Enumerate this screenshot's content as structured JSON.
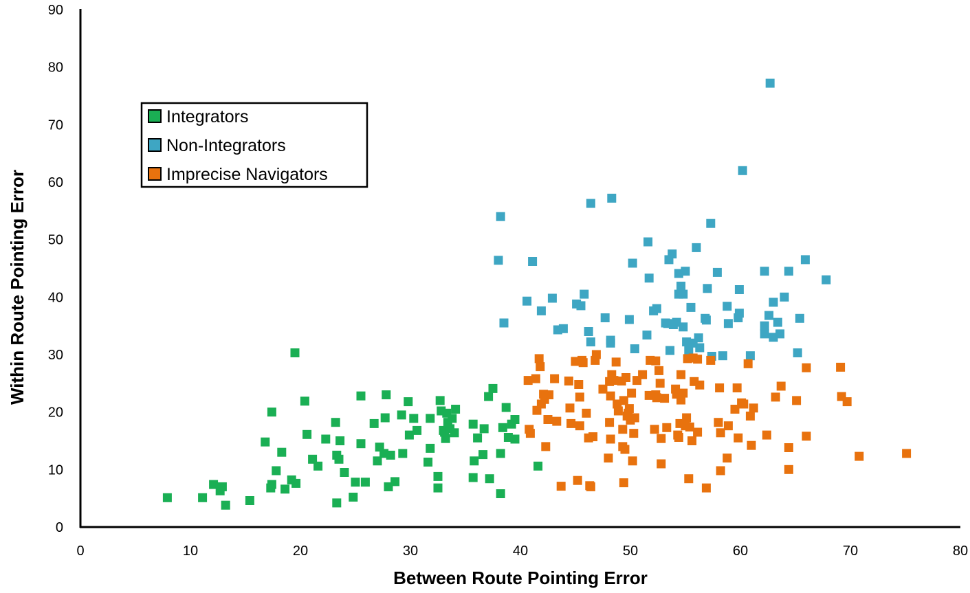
{
  "chart_data": {
    "type": "scatter",
    "xlabel": "Between Route Pointing Error",
    "ylabel": "Within Route Pointing Error",
    "xlim": [
      0,
      80
    ],
    "ylim": [
      0,
      90
    ],
    "xticks": [
      "0",
      "10",
      "20",
      "30",
      "40",
      "50",
      "60",
      "70",
      "80"
    ],
    "yticks": [
      "0",
      "10",
      "20",
      "30",
      "40",
      "50",
      "60",
      "70",
      "80",
      "90"
    ],
    "grid": false,
    "legend_position": "top-left",
    "series": [
      {
        "name": "Integrators",
        "color": "#1aaf54",
        "points": [
          [
            7.9,
            5.1
          ],
          [
            11.1,
            5.1
          ],
          [
            12.1,
            7.4
          ],
          [
            12.7,
            6.3
          ],
          [
            12.9,
            7.0
          ],
          [
            13.2,
            3.8
          ],
          [
            15.4,
            4.6
          ],
          [
            16.8,
            14.8
          ],
          [
            17.3,
            6.8
          ],
          [
            17.4,
            7.4
          ],
          [
            17.4,
            20.0
          ],
          [
            17.8,
            9.8
          ],
          [
            18.3,
            13.0
          ],
          [
            18.6,
            6.6
          ],
          [
            19.2,
            8.2
          ],
          [
            19.5,
            30.3
          ],
          [
            19.6,
            7.6
          ],
          [
            20.4,
            21.9
          ],
          [
            20.6,
            16.1
          ],
          [
            21.1,
            11.8
          ],
          [
            21.6,
            10.6
          ],
          [
            22.3,
            15.3
          ],
          [
            23.2,
            18.2
          ],
          [
            23.3,
            12.5
          ],
          [
            23.3,
            4.2
          ],
          [
            23.5,
            11.8
          ],
          [
            23.6,
            15.0
          ],
          [
            24.0,
            9.5
          ],
          [
            24.8,
            5.2
          ],
          [
            25.0,
            7.8
          ],
          [
            25.5,
            22.8
          ],
          [
            25.5,
            14.5
          ],
          [
            25.9,
            7.8
          ],
          [
            26.7,
            18.0
          ],
          [
            27.0,
            11.5
          ],
          [
            27.2,
            13.9
          ],
          [
            27.6,
            12.8
          ],
          [
            27.7,
            19.0
          ],
          [
            27.8,
            23.0
          ],
          [
            28.0,
            7.0
          ],
          [
            28.2,
            12.5
          ],
          [
            28.6,
            7.9
          ],
          [
            29.2,
            19.5
          ],
          [
            29.3,
            12.8
          ],
          [
            29.8,
            21.8
          ],
          [
            29.9,
            16.0
          ],
          [
            30.3,
            18.9
          ],
          [
            30.6,
            16.8
          ],
          [
            31.6,
            11.3
          ],
          [
            31.8,
            13.7
          ],
          [
            31.8,
            18.9
          ],
          [
            32.5,
            8.8
          ],
          [
            32.5,
            6.8
          ],
          [
            32.7,
            22.0
          ],
          [
            32.8,
            20.2
          ],
          [
            33.0,
            16.8
          ],
          [
            33.1,
            16.5
          ],
          [
            33.2,
            15.4
          ],
          [
            33.3,
            19.8
          ],
          [
            33.4,
            18.2
          ],
          [
            33.6,
            17.1
          ],
          [
            33.8,
            18.9
          ],
          [
            34.0,
            16.4
          ],
          [
            34.1,
            20.5
          ],
          [
            35.7,
            8.6
          ],
          [
            35.7,
            17.9
          ],
          [
            35.8,
            11.5
          ],
          [
            36.1,
            15.5
          ],
          [
            36.6,
            12.6
          ],
          [
            36.7,
            17.1
          ],
          [
            37.1,
            22.7
          ],
          [
            37.2,
            8.4
          ],
          [
            37.5,
            24.1
          ],
          [
            38.2,
            5.8
          ],
          [
            38.2,
            12.8
          ],
          [
            38.4,
            17.3
          ],
          [
            38.7,
            20.8
          ],
          [
            38.9,
            15.6
          ],
          [
            39.2,
            17.9
          ],
          [
            39.5,
            15.3
          ],
          [
            39.5,
            18.7
          ],
          [
            41.6,
            10.6
          ]
        ]
      },
      {
        "name": "Non-Integrators",
        "color": "#3ea6c3",
        "points": [
          [
            38.0,
            46.4
          ],
          [
            38.2,
            54.0
          ],
          [
            38.5,
            35.5
          ],
          [
            40.6,
            39.3
          ],
          [
            41.1,
            46.2
          ],
          [
            41.9,
            37.6
          ],
          [
            42.9,
            39.8
          ],
          [
            43.4,
            34.3
          ],
          [
            43.9,
            34.5
          ],
          [
            45.1,
            38.8
          ],
          [
            45.5,
            38.5
          ],
          [
            45.8,
            40.5
          ],
          [
            46.2,
            34.0
          ],
          [
            46.4,
            56.3
          ],
          [
            46.4,
            32.2
          ],
          [
            47.7,
            36.4
          ],
          [
            48.2,
            32.0
          ],
          [
            48.2,
            32.5
          ],
          [
            48.3,
            57.2
          ],
          [
            49.9,
            36.1
          ],
          [
            50.2,
            45.9
          ],
          [
            50.4,
            31.0
          ],
          [
            51.5,
            33.4
          ],
          [
            51.6,
            49.6
          ],
          [
            51.7,
            43.3
          ],
          [
            52.1,
            37.6
          ],
          [
            52.4,
            38.0
          ],
          [
            53.2,
            35.5
          ],
          [
            53.4,
            35.4
          ],
          [
            53.5,
            46.5
          ],
          [
            53.6,
            30.7
          ],
          [
            53.8,
            47.5
          ],
          [
            53.9,
            35.2
          ],
          [
            54.2,
            35.6
          ],
          [
            54.4,
            40.5
          ],
          [
            54.4,
            44.1
          ],
          [
            54.6,
            41.9
          ],
          [
            54.8,
            40.5
          ],
          [
            54.8,
            34.8
          ],
          [
            55.0,
            44.5
          ],
          [
            55.1,
            32.2
          ],
          [
            55.3,
            30.7
          ],
          [
            55.5,
            38.2
          ],
          [
            55.7,
            32.0
          ],
          [
            56.0,
            48.6
          ],
          [
            56.2,
            32.9
          ],
          [
            56.3,
            31.2
          ],
          [
            56.8,
            36.3
          ],
          [
            56.9,
            36.0
          ],
          [
            57.0,
            41.5
          ],
          [
            57.3,
            52.8
          ],
          [
            57.4,
            29.7
          ],
          [
            57.9,
            44.3
          ],
          [
            58.4,
            29.8
          ],
          [
            58.8,
            38.4
          ],
          [
            58.9,
            35.4
          ],
          [
            59.8,
            36.4
          ],
          [
            59.9,
            37.2
          ],
          [
            59.9,
            41.3
          ],
          [
            60.2,
            62.0
          ],
          [
            60.9,
            29.8
          ],
          [
            62.2,
            44.5
          ],
          [
            62.2,
            35.0
          ],
          [
            62.2,
            33.6
          ],
          [
            62.6,
            36.8
          ],
          [
            62.7,
            77.2
          ],
          [
            63.0,
            39.1
          ],
          [
            63.0,
            33.0
          ],
          [
            63.4,
            35.6
          ],
          [
            63.6,
            33.6
          ],
          [
            64.0,
            40.0
          ],
          [
            64.4,
            44.5
          ],
          [
            65.2,
            30.3
          ],
          [
            65.4,
            36.3
          ],
          [
            65.9,
            46.5
          ],
          [
            67.8,
            43.0
          ]
        ]
      },
      {
        "name": "Imprecise Navigators",
        "color": "#e8720e",
        "points": [
          [
            40.7,
            25.5
          ],
          [
            40.8,
            17.0
          ],
          [
            40.9,
            16.3
          ],
          [
            41.4,
            25.8
          ],
          [
            41.5,
            20.3
          ],
          [
            41.7,
            29.3
          ],
          [
            41.8,
            27.9
          ],
          [
            41.9,
            21.4
          ],
          [
            42.1,
            23.1
          ],
          [
            42.2,
            22.2
          ],
          [
            42.3,
            14.0
          ],
          [
            42.5,
            18.7
          ],
          [
            42.6,
            23.0
          ],
          [
            43.1,
            25.8
          ],
          [
            43.3,
            18.4
          ],
          [
            43.7,
            7.1
          ],
          [
            44.4,
            25.4
          ],
          [
            44.5,
            20.7
          ],
          [
            44.6,
            18.0
          ],
          [
            45.0,
            28.8
          ],
          [
            45.2,
            8.1
          ],
          [
            45.3,
            24.8
          ],
          [
            45.4,
            17.6
          ],
          [
            45.4,
            22.6
          ],
          [
            45.6,
            29.0
          ],
          [
            45.7,
            28.6
          ],
          [
            46.0,
            19.8
          ],
          [
            46.2,
            15.5
          ],
          [
            46.3,
            7.2
          ],
          [
            46.4,
            7.0
          ],
          [
            46.6,
            15.7
          ],
          [
            46.8,
            29.0
          ],
          [
            46.9,
            30.0
          ],
          [
            47.5,
            24.0
          ],
          [
            48.0,
            12.0
          ],
          [
            48.1,
            18.2
          ],
          [
            48.1,
            25.3
          ],
          [
            48.2,
            15.3
          ],
          [
            48.2,
            22.8
          ],
          [
            48.3,
            26.5
          ],
          [
            48.5,
            25.5
          ],
          [
            48.7,
            28.7
          ],
          [
            48.8,
            21.4
          ],
          [
            48.9,
            20.2
          ],
          [
            49.2,
            25.4
          ],
          [
            49.3,
            17.0
          ],
          [
            49.3,
            14.0
          ],
          [
            49.4,
            22.0
          ],
          [
            49.4,
            7.7
          ],
          [
            49.5,
            13.5
          ],
          [
            49.6,
            26.0
          ],
          [
            49.7,
            19.3
          ],
          [
            49.8,
            19.8
          ],
          [
            49.9,
            20.6
          ],
          [
            50.0,
            18.6
          ],
          [
            50.1,
            23.3
          ],
          [
            50.2,
            11.5
          ],
          [
            50.3,
            16.3
          ],
          [
            50.4,
            19.0
          ],
          [
            50.6,
            25.5
          ],
          [
            51.1,
            26.5
          ],
          [
            51.7,
            22.9
          ],
          [
            51.8,
            29.0
          ],
          [
            52.2,
            17.0
          ],
          [
            52.3,
            23.0
          ],
          [
            52.3,
            28.9
          ],
          [
            52.4,
            22.5
          ],
          [
            52.6,
            27.2
          ],
          [
            52.7,
            25.0
          ],
          [
            52.8,
            11.0
          ],
          [
            52.8,
            15.4
          ],
          [
            53.1,
            22.4
          ],
          [
            53.3,
            17.3
          ],
          [
            54.1,
            24.0
          ],
          [
            54.2,
            23.1
          ],
          [
            54.3,
            16.0
          ],
          [
            54.4,
            15.6
          ],
          [
            54.5,
            18.0
          ],
          [
            54.6,
            22.1
          ],
          [
            54.6,
            26.5
          ],
          [
            54.8,
            23.3
          ],
          [
            55.0,
            17.6
          ],
          [
            55.1,
            19.0
          ],
          [
            55.2,
            29.3
          ],
          [
            55.3,
            8.4
          ],
          [
            55.4,
            17.4
          ],
          [
            55.6,
            15.0
          ],
          [
            55.7,
            29.4
          ],
          [
            55.8,
            25.3
          ],
          [
            56.1,
            29.2
          ],
          [
            56.1,
            16.5
          ],
          [
            56.3,
            24.7
          ],
          [
            56.9,
            6.8
          ],
          [
            57.3,
            29.0
          ],
          [
            58.0,
            18.2
          ],
          [
            58.1,
            24.2
          ],
          [
            58.2,
            16.4
          ],
          [
            58.2,
            9.8
          ],
          [
            58.8,
            12.0
          ],
          [
            58.9,
            17.6
          ],
          [
            59.5,
            20.5
          ],
          [
            59.7,
            24.2
          ],
          [
            59.8,
            15.5
          ],
          [
            60.1,
            21.6
          ],
          [
            60.3,
            21.4
          ],
          [
            60.7,
            28.4
          ],
          [
            60.9,
            19.3
          ],
          [
            61.0,
            14.2
          ],
          [
            61.2,
            20.7
          ],
          [
            62.4,
            16.0
          ],
          [
            63.2,
            22.6
          ],
          [
            63.7,
            24.5
          ],
          [
            64.4,
            13.8
          ],
          [
            64.4,
            10.0
          ],
          [
            65.1,
            22.0
          ],
          [
            66.0,
            27.7
          ],
          [
            66.0,
            15.8
          ],
          [
            69.1,
            27.8
          ],
          [
            69.2,
            22.7
          ],
          [
            69.7,
            21.8
          ],
          [
            70.8,
            12.3
          ],
          [
            75.1,
            12.8
          ]
        ]
      }
    ]
  }
}
